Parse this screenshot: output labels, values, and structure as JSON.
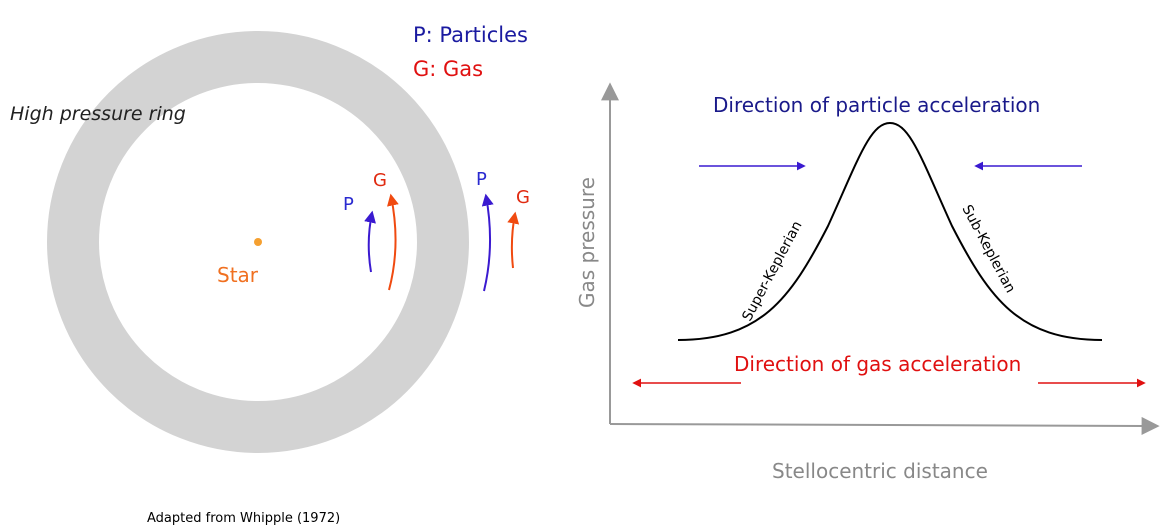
{
  "left_panel": {
    "ring_label": "High pressure ring",
    "star_label": "Star",
    "legend": {
      "particles": "P: Particles",
      "gas": "G: Gas"
    },
    "inner_labels": {
      "p": "P",
      "g": "G"
    },
    "outer_labels": {
      "p": "P",
      "g": "G"
    },
    "credit": "Adapted from Whipple (1972)",
    "colors": {
      "ring": "#d3d3d3",
      "star": "#f5a030",
      "particle": "#3a1ad0",
      "gas": "#f04a10"
    }
  },
  "right_panel": {
    "title_particle": "Direction of particle acceleration",
    "title_gas": "Direction of gas acceleration",
    "y_axis_label": "Gas pressure",
    "x_axis_label": "Stellocentric distance",
    "left_slope_label": "Super-Keplerian",
    "right_slope_label": "Sub-Keplerian",
    "colors": {
      "axis": "#999999",
      "curve": "#000000",
      "particle_arrow": "#3a1ad0",
      "gas_arrow": "#e01010"
    }
  }
}
